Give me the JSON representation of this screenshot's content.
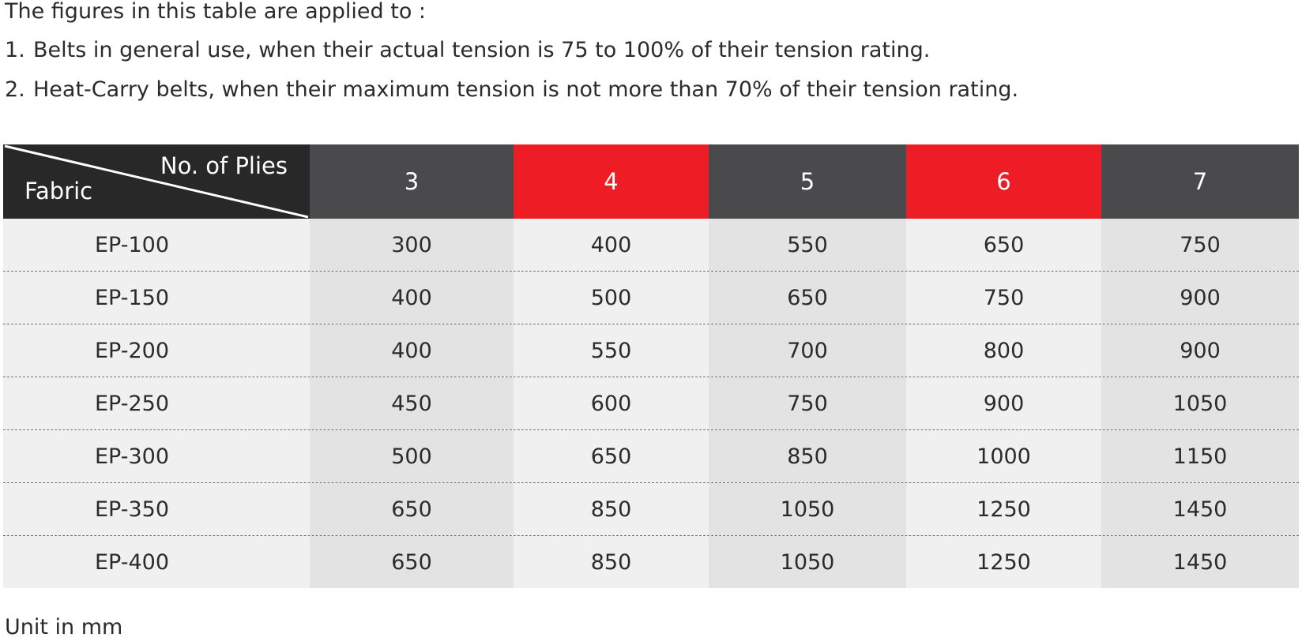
{
  "intro": {
    "heading": "The figures in this table are applied to :",
    "items": [
      {
        "num": "1.",
        "text": "Belts in general use, when their actual tension is 75 to 100% of their tension rating."
      },
      {
        "num": "2.",
        "text": "Heat-Carry belts, when their maximum tension is not more than 70% of their tension rating."
      }
    ]
  },
  "table": {
    "corner": {
      "top_label": "No. of Plies",
      "bottom_label": "Fabric"
    },
    "plies": [
      "3",
      "4",
      "5",
      "6",
      "7"
    ],
    "header_colors": [
      "#4a4a4c",
      "#ee1c25",
      "#4a4a4c",
      "#ee1c25",
      "#4a4a4c"
    ],
    "rows": [
      {
        "fabric": "EP-100",
        "values": [
          "300",
          "400",
          "550",
          "650",
          "750"
        ]
      },
      {
        "fabric": "EP-150",
        "values": [
          "400",
          "500",
          "650",
          "750",
          "900"
        ]
      },
      {
        "fabric": "EP-200",
        "values": [
          "400",
          "550",
          "700",
          "800",
          "900"
        ]
      },
      {
        "fabric": "EP-250",
        "values": [
          "450",
          "600",
          "750",
          "900",
          "1050"
        ]
      },
      {
        "fabric": "EP-300",
        "values": [
          "500",
          "650",
          "850",
          "1000",
          "1150"
        ]
      },
      {
        "fabric": "EP-350",
        "values": [
          "650",
          "850",
          "1050",
          "1250",
          "1450"
        ]
      },
      {
        "fabric": "EP-400",
        "values": [
          "650",
          "850",
          "1050",
          "1250",
          "1450"
        ]
      }
    ]
  },
  "footer": {
    "unit_note": "Unit in mm"
  }
}
